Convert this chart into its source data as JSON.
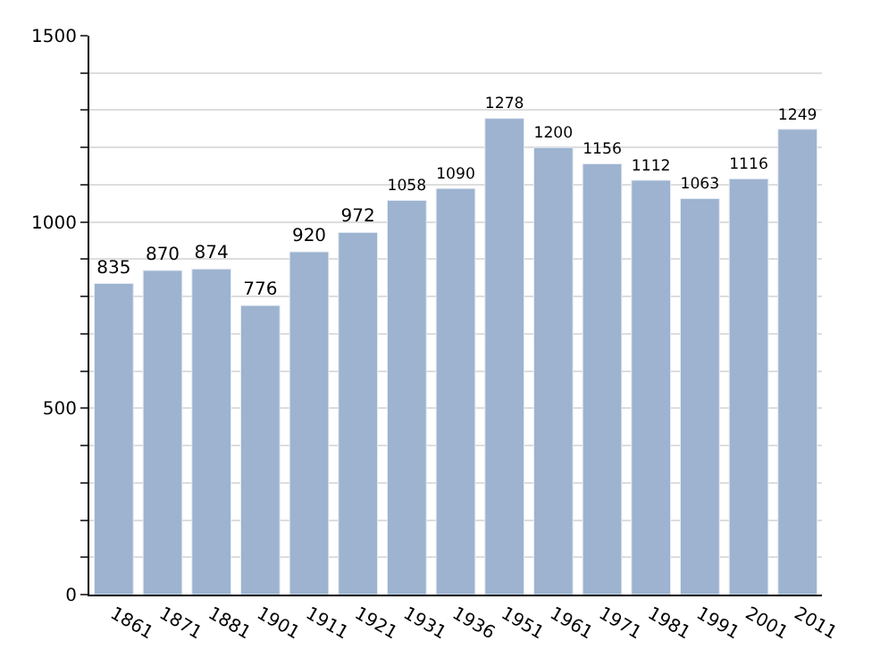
{
  "chart_data": {
    "type": "bar",
    "categories": [
      "1861",
      "1871",
      "1881",
      "1901",
      "1911",
      "1921",
      "1931",
      "1936",
      "1951",
      "1961",
      "1971",
      "1981",
      "1991",
      "2001",
      "2011"
    ],
    "values": [
      835,
      870,
      874,
      776,
      920,
      972,
      1058,
      1090,
      1278,
      1200,
      1156,
      1112,
      1063,
      1116,
      1249
    ],
    "color": "#9db3cf",
    "ylim": [
      0,
      1500
    ],
    "yticks": [
      0,
      {
        "value": 100,
        "label": null
      },
      {
        "value": 200,
        "label": null
      },
      {
        "value": 300,
        "label": null
      },
      {
        "value": 400,
        "label": null
      },
      500,
      {
        "value": 600,
        "label": null
      },
      {
        "value": 700,
        "label": null
      },
      {
        "value": 800,
        "label": null
      },
      {
        "value": 900,
        "label": null
      },
      1000,
      {
        "value": 1100,
        "label": null
      },
      {
        "value": 1200,
        "label": null
      },
      {
        "value": 1300,
        "label": null
      },
      {
        "value": 1400,
        "label": null
      },
      1500
    ],
    "grid": "y",
    "data_labels": true
  }
}
